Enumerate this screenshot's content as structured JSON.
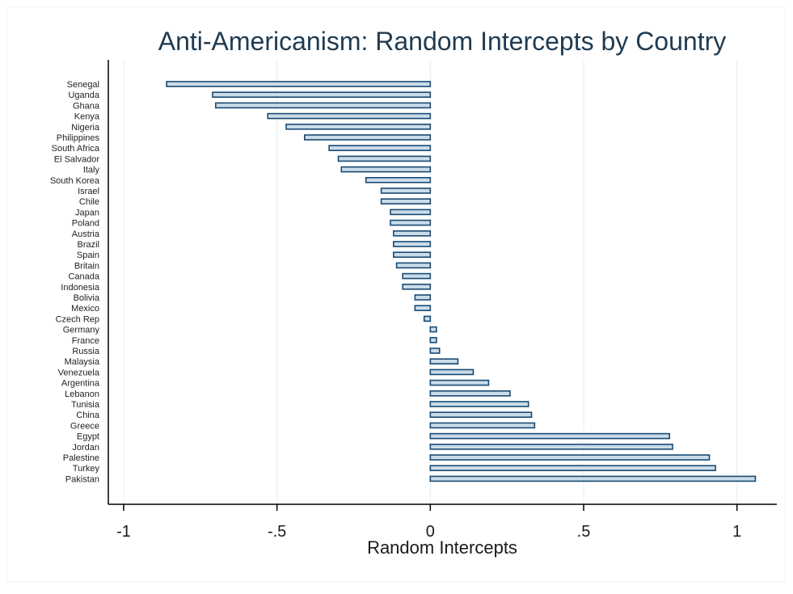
{
  "chart_data": {
    "type": "bar",
    "orientation": "horizontal",
    "title": "Anti-Americanism: Random Intercepts by Country",
    "xlabel": "Random Intercepts",
    "ylabel": "",
    "xlim": [
      -1.05,
      1.13
    ],
    "xticks": [
      -1,
      -0.5,
      0,
      0.5,
      1
    ],
    "xtick_labels": [
      "-1",
      "-.5",
      "0",
      ".5",
      "1"
    ],
    "grid": true,
    "colors": {
      "bar_fill": "#c9dcea",
      "bar_edge": "#1a4a72",
      "title": "#1f3b52",
      "grid": "#e3eef1"
    },
    "categories": [
      "Senegal",
      "Uganda",
      "Ghana",
      "Kenya",
      "Nigeria",
      "Philippines",
      "South Africa",
      "El Salvador",
      "Italy",
      "South Korea",
      "Israel",
      "Chile",
      "Japan",
      "Poland",
      "Austria",
      "Brazil",
      "Spain",
      "Britain",
      "Canada",
      "Indonesia",
      "Bolivia",
      "Mexico",
      "Czech Rep",
      "Germany",
      "France",
      "Russia",
      "Malaysia",
      "Venezuela",
      "Argentina",
      "Lebanon",
      "Tunisia",
      "China",
      "Greece",
      "Egypt",
      "Jordan",
      "Palestine",
      "Turkey",
      "Pakistan"
    ],
    "values": [
      -0.86,
      -0.71,
      -0.7,
      -0.53,
      -0.47,
      -0.41,
      -0.33,
      -0.3,
      -0.29,
      -0.21,
      -0.16,
      -0.16,
      -0.13,
      -0.13,
      -0.12,
      -0.12,
      -0.12,
      -0.11,
      -0.09,
      -0.09,
      -0.05,
      -0.05,
      -0.02,
      0.02,
      0.02,
      0.03,
      0.09,
      0.14,
      0.19,
      0.26,
      0.32,
      0.33,
      0.34,
      0.78,
      0.79,
      0.91,
      0.93,
      1.06
    ]
  }
}
